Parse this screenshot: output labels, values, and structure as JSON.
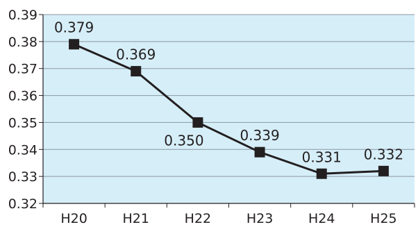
{
  "chart_data": {
    "type": "line",
    "title": "",
    "xlabel": "",
    "ylabel": "",
    "categories": [
      "H20",
      "H21",
      "H22",
      "H23",
      "H24",
      "H25"
    ],
    "series": [
      {
        "values": [
          0.379,
          0.369,
          0.35,
          0.339,
          0.331,
          0.332
        ]
      }
    ],
    "data_labels": [
      "0.379",
      "0.369",
      "0.350",
      "0.339",
      "0.331",
      "0.332"
    ],
    "ylim": [
      0.32,
      0.39
    ],
    "yticks": [
      0.32,
      0.33,
      0.34,
      0.35,
      0.36,
      0.37,
      0.38,
      0.39
    ],
    "ytick_labels": [
      "0.32",
      "0.33",
      "0.34",
      "0.35",
      "0.36",
      "0.37",
      "0.38",
      "0.39"
    ],
    "grid": true,
    "legend": "none",
    "colors": {
      "plot_background": "#d6eef8",
      "gridline": "#8a9aa3",
      "line": "#231f20",
      "marker": "#231f20",
      "text": "#231f20"
    }
  }
}
